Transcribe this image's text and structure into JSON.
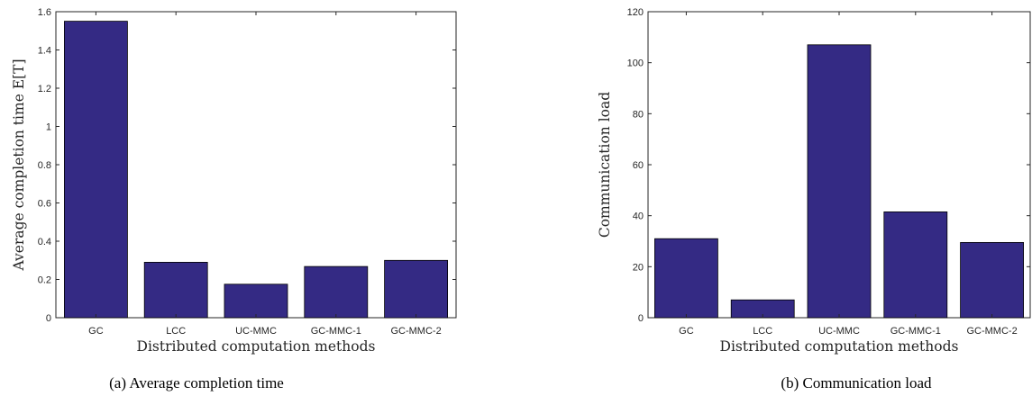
{
  "chart_data": [
    {
      "type": "bar",
      "categories": [
        "GC",
        "LCC",
        "UC-MMC",
        "GC-MMC-1",
        "GC-MMC-2"
      ],
      "values": [
        1.55,
        0.29,
        0.175,
        0.268,
        0.3
      ],
      "xlabel": "Distributed computation methods",
      "ylabel": "Average completion time E[T]",
      "ylim": [
        0,
        1.6
      ],
      "yticks": [
        "0",
        "0.2",
        "0.4",
        "0.6",
        "0.8",
        "1",
        "1.2",
        "1.4",
        "1.6"
      ],
      "caption": "(a) Average completion time",
      "bar_color": "#342a84",
      "grid": false
    },
    {
      "type": "bar",
      "categories": [
        "GC",
        "LCC",
        "UC-MMC",
        "GC-MMC-1",
        "GC-MMC-2"
      ],
      "values": [
        31,
        7,
        107,
        41.5,
        29.5
      ],
      "xlabel": "Distributed computation methods",
      "ylabel": "Communication load",
      "ylim": [
        0,
        120
      ],
      "yticks": [
        "0",
        "20",
        "40",
        "60",
        "80",
        "100",
        "120"
      ],
      "caption": "(b) Communication load",
      "bar_color": "#342a84",
      "grid": false
    }
  ]
}
